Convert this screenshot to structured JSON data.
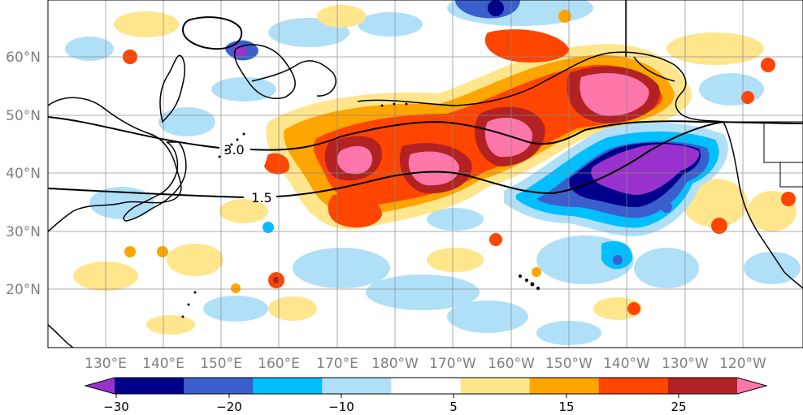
{
  "map": {
    "lat_labels": [
      "60°N",
      "50°N",
      "40°N",
      "30°N",
      "20°N"
    ],
    "lon_labels": [
      "130°E",
      "140°E",
      "150°E",
      "160°E",
      "170°E",
      "180°W",
      "170°W",
      "160°W",
      "150°W",
      "140°W",
      "130°W",
      "120°W"
    ],
    "contours": [
      {
        "label": "3.0"
      },
      {
        "label": "1.5"
      }
    ]
  },
  "colorbar": {
    "colors": [
      "#9932CC",
      "#00008B",
      "#3A5FCD",
      "#00BFFF",
      "#B0E0F8",
      "#FFFFFF",
      "#FFE68C",
      "#FFA500",
      "#FF4500",
      "#B22222",
      "#FF77AA"
    ],
    "tick_labels": [
      "−30",
      "−20",
      "−10",
      "5",
      "15",
      "25"
    ]
  }
}
